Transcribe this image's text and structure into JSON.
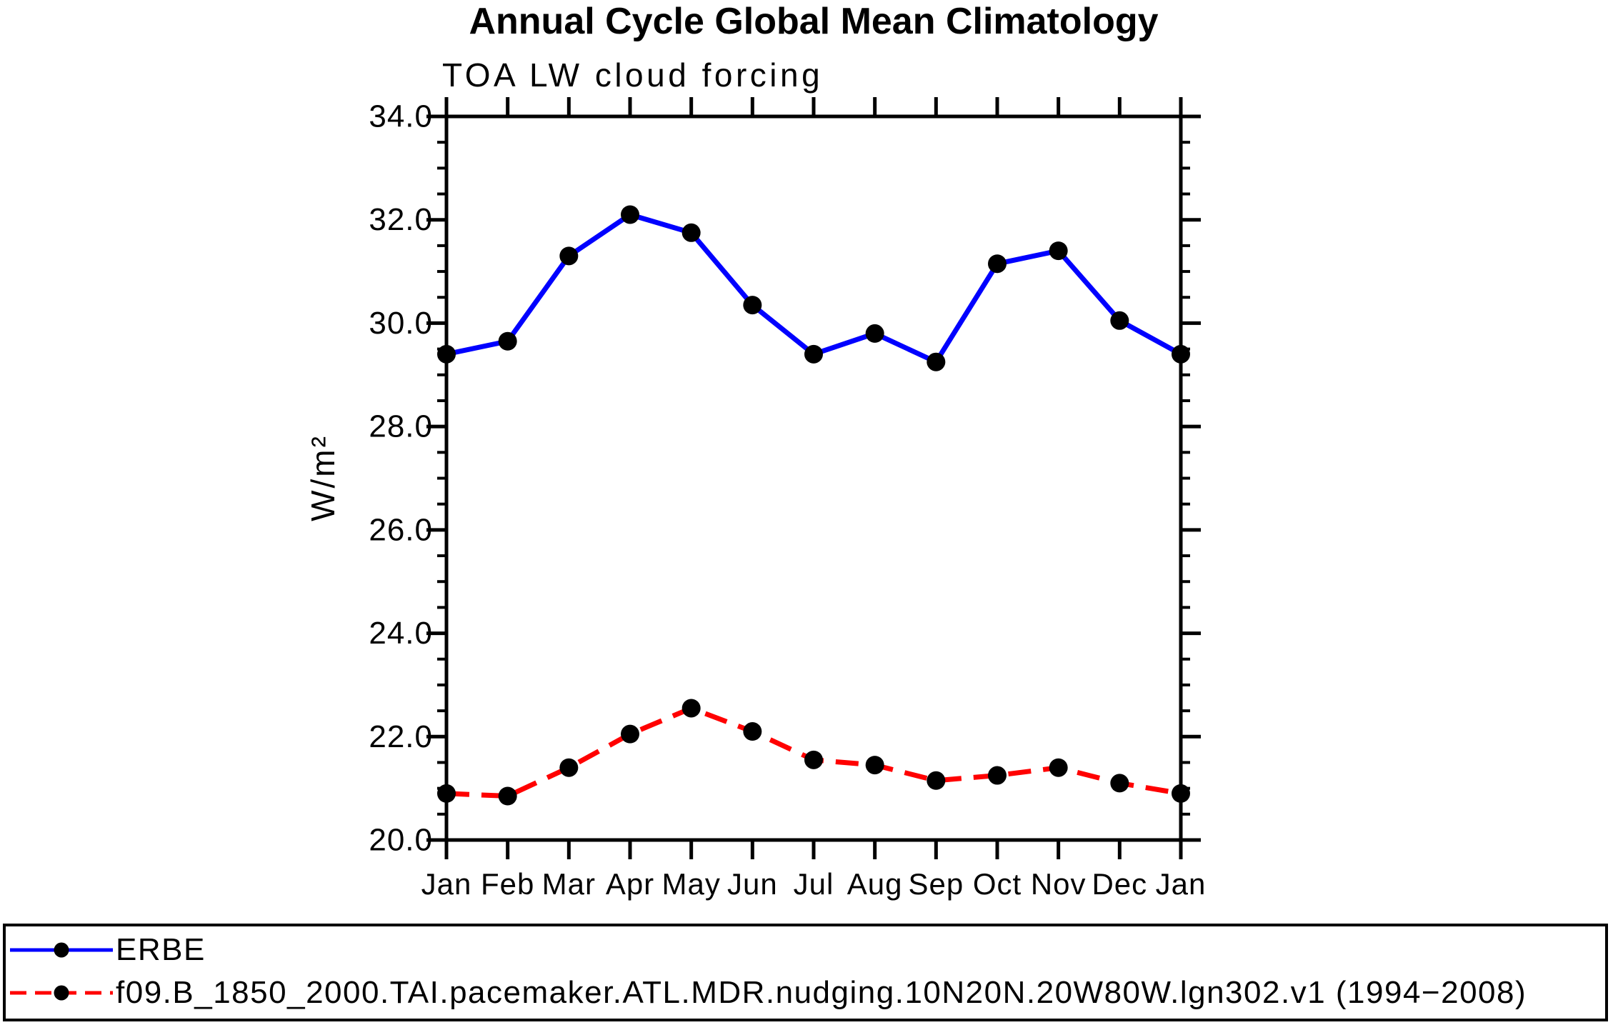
{
  "title": "Annual Cycle Global Mean Climatology",
  "subtitle": "TOA LW cloud forcing",
  "chart_data": {
    "type": "line",
    "categories": [
      "Jan",
      "Feb",
      "Mar",
      "Apr",
      "May",
      "Jun",
      "Jul",
      "Aug",
      "Sep",
      "Oct",
      "Nov",
      "Dec",
      "Jan"
    ],
    "xlabel": "",
    "ylabel": "W/m²",
    "ylim": [
      20.0,
      34.0
    ],
    "ytick_interval": 2.0,
    "yminor_interval": 0.5,
    "ytick_labels": [
      "20.0",
      "22.0",
      "24.0",
      "26.0",
      "28.0",
      "30.0",
      "32.0",
      "34.0"
    ],
    "grid": false,
    "legend_position": "bottom-outside",
    "axis_color": "#000000",
    "marker_color": "#000000",
    "series": [
      {
        "name": "ERBE",
        "color": "#0000ff",
        "line_style": "solid",
        "marker": "filled-circle",
        "values": [
          29.4,
          29.65,
          31.3,
          32.1,
          31.75,
          30.35,
          29.4,
          29.8,
          29.25,
          31.15,
          31.4,
          30.05,
          29.4
        ]
      },
      {
        "name": "f09.B_1850_2000.TAI.pacemaker.ATL.MDR.nudging.10N20N.20W80W.lgn302.v1 (1994−2008)",
        "color": "#ff0000",
        "line_style": "dashed",
        "marker": "filled-circle",
        "values": [
          20.9,
          20.85,
          21.4,
          22.05,
          22.55,
          22.1,
          21.55,
          21.45,
          21.15,
          21.25,
          21.4,
          21.1,
          20.9
        ]
      }
    ]
  }
}
